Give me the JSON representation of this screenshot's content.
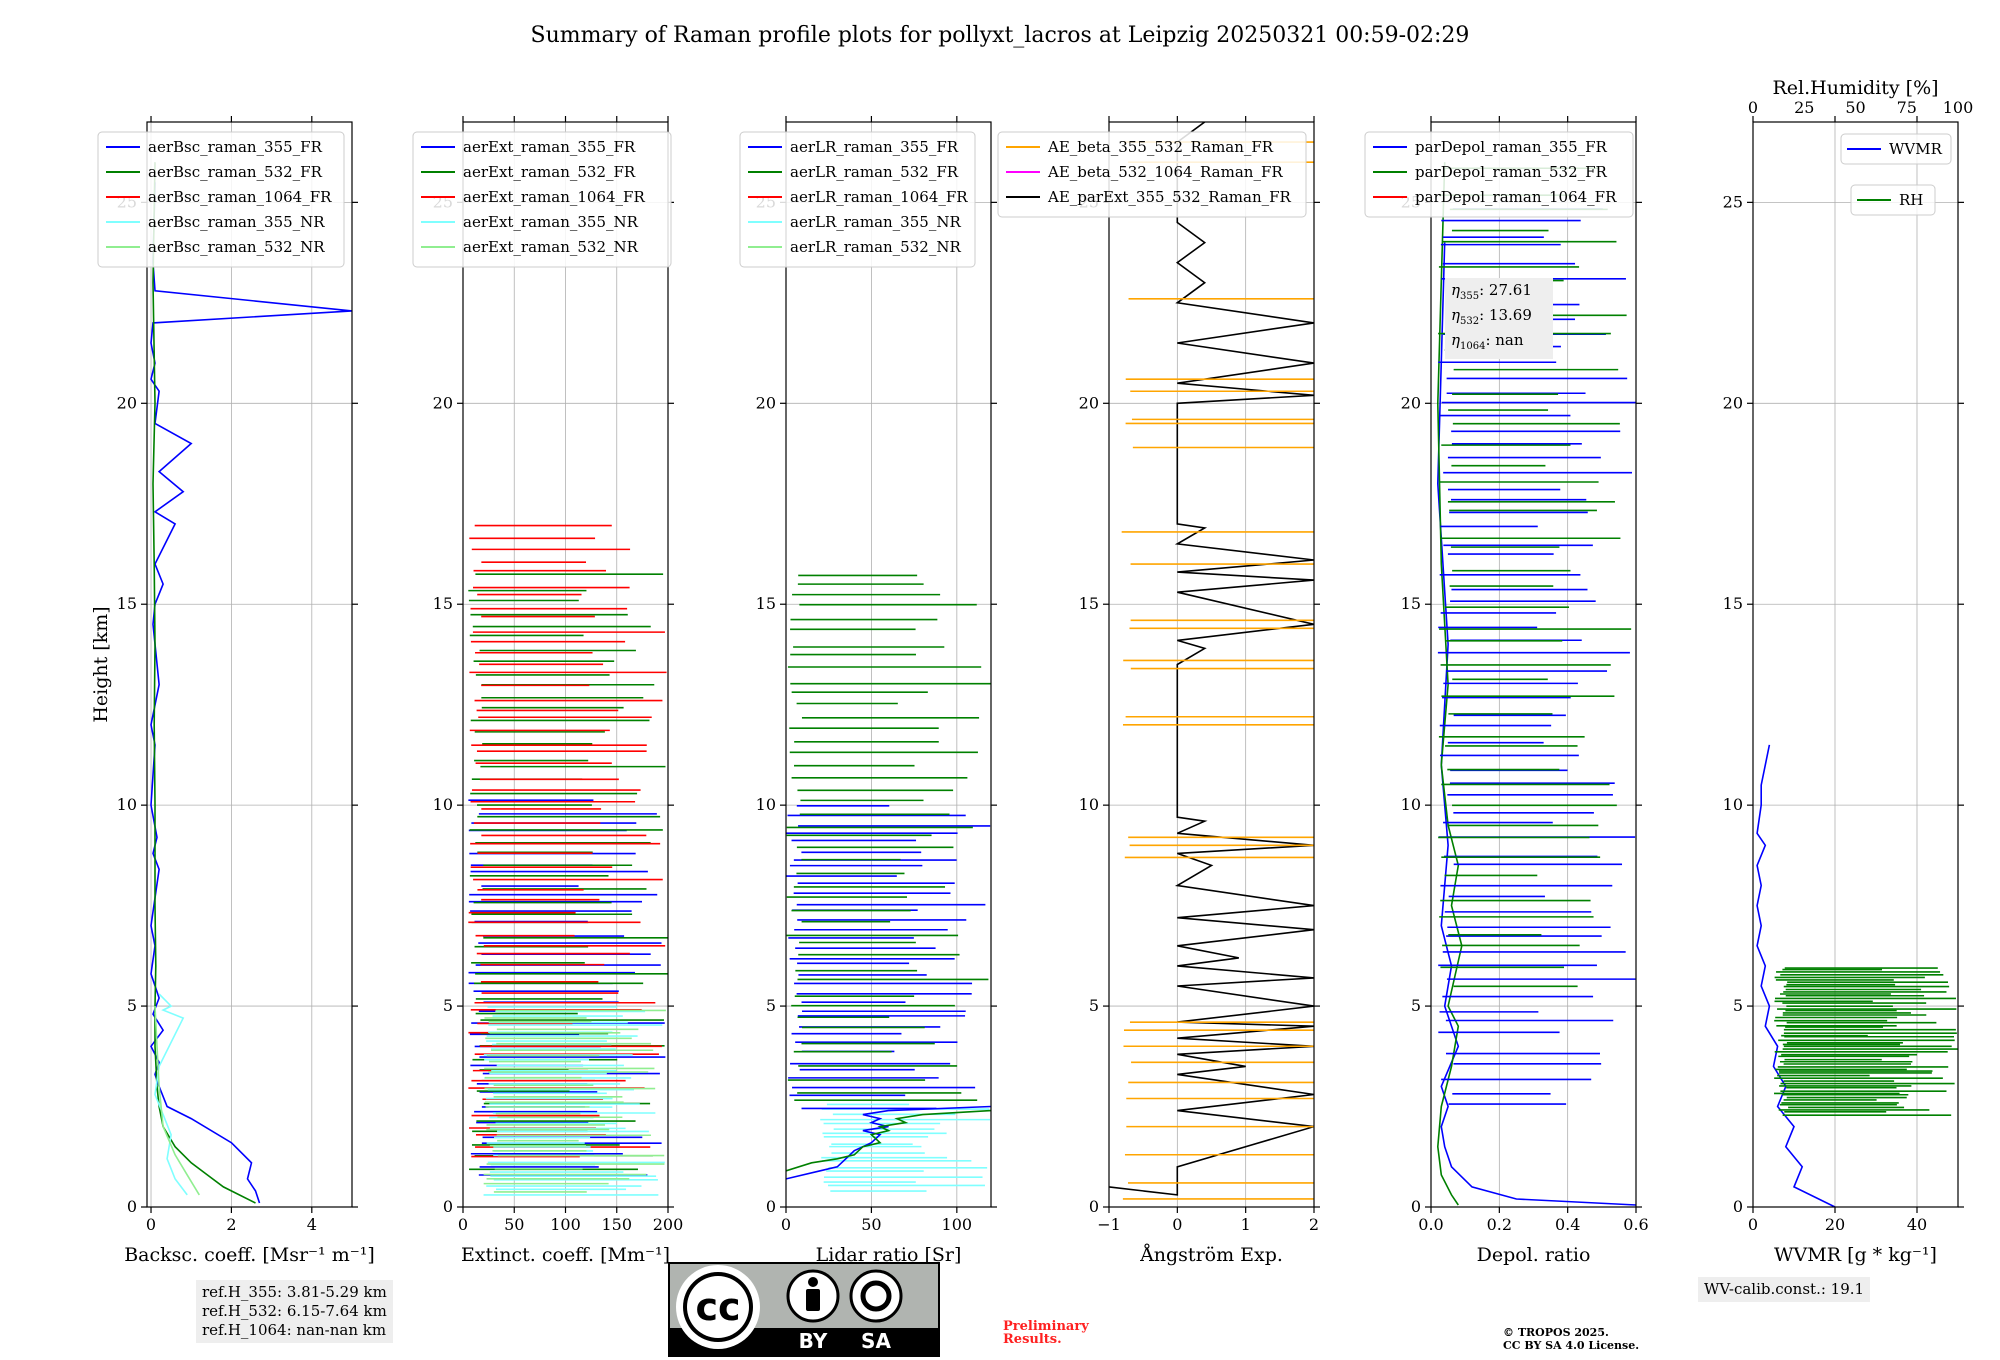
{
  "chart_data": {
    "type": "line",
    "title": "Summary of Raman profile plots for pollyxt_lacros at Leipzig 20250321 00:59-02:29",
    "ylabel": "Height [km]",
    "ylim": [
      0,
      27
    ],
    "yticks": [
      0,
      5,
      10,
      15,
      20,
      25
    ],
    "panels": [
      {
        "id": "bsc",
        "xlabel": "Backsc. coeff. [Msr⁻¹ m⁻¹]",
        "xlim": [
          -0.1,
          5
        ],
        "xticks": [
          0,
          2,
          4
        ],
        "xticklabels": [
          "0",
          "2",
          "4"
        ],
        "legend": [
          "aerBsc_raman_355_FR",
          "aerBsc_raman_532_FR",
          "aerBsc_raman_1064_FR",
          "aerBsc_raman_355_NR",
          "aerBsc_raman_532_NR"
        ],
        "legend_colors": [
          "#0000ff",
          "#008000",
          "#ff0000",
          "#7fffff",
          "#90ee90"
        ],
        "series": [
          {
            "name": "aerBsc_raman_355_FR",
            "color": "#0000ff",
            "style": "line",
            "x": [
              2.7,
              2.6,
              2.4,
              2.5,
              2.0,
              1.0,
              0.4,
              0.2,
              0.1,
              0.2,
              0.0,
              0.3,
              0.05,
              0.2,
              0.0,
              0.1,
              0.0,
              0.2,
              0.05,
              0.15,
              0.0,
              0.1,
              0.0,
              0.2,
              0.05,
              0.1,
              0.3,
              0.1,
              0.6,
              0.1,
              0.8,
              0.2,
              1.0,
              0.1,
              0.2,
              0.0,
              0.1,
              0.0,
              0.05,
              5.0,
              0.1,
              0.05,
              0.1
            ],
            "y": [
              0.1,
              0.4,
              0.7,
              1.1,
              1.6,
              2.2,
              2.5,
              3.0,
              3.3,
              3.6,
              4.0,
              4.4,
              4.8,
              5.2,
              5.8,
              6.5,
              7.0,
              8.4,
              8.8,
              9.2,
              10.0,
              11.5,
              12.0,
              13.0,
              14.5,
              15.0,
              15.5,
              16.0,
              17.0,
              17.3,
              17.8,
              18.3,
              19.0,
              19.5,
              20.3,
              20.6,
              21.0,
              21.5,
              22.0,
              22.3,
              22.8,
              23.5,
              25.5
            ]
          },
          {
            "name": "aerBsc_raman_532_FR",
            "color": "#008000",
            "style": "line",
            "x": [
              2.6,
              1.8,
              1.4,
              1.0,
              0.6,
              0.3,
              0.2,
              0.15,
              0.1,
              0.1,
              0.12,
              0.1,
              0.1,
              0.1,
              0.08,
              0.1,
              0.08,
              0.05,
              0.1,
              0.05,
              0.1
            ],
            "y": [
              0.1,
              0.5,
              0.8,
              1.1,
              1.5,
              2.0,
              2.5,
              3.0,
              4.0,
              5.0,
              6.0,
              7.5,
              8.5,
              10.0,
              12.0,
              14.0,
              16.0,
              18.0,
              20.0,
              23.0,
              26.0
            ]
          },
          {
            "name": "aerBsc_raman_355_NR",
            "color": "#7fffff",
            "style": "line",
            "x": [
              0.9,
              0.6,
              0.4,
              0.5,
              0.3,
              0.1,
              0.2,
              0.8,
              0.3,
              0.5,
              0.2
            ],
            "y": [
              0.3,
              0.7,
              1.2,
              1.8,
              2.3,
              2.8,
              3.5,
              4.7,
              4.9,
              5.0,
              5.3
            ]
          },
          {
            "name": "aerBsc_raman_532_NR",
            "color": "#90ee90",
            "style": "line",
            "x": [
              1.2,
              0.9,
              0.6,
              0.3,
              0.2,
              0.15,
              0.1
            ],
            "y": [
              0.3,
              0.8,
              1.3,
              2.0,
              3.0,
              4.0,
              5.0
            ]
          }
        ]
      },
      {
        "id": "ext",
        "xlabel": "Extinct. coeff. [Mm⁻¹]",
        "xlim": [
          0,
          200
        ],
        "xticks": [
          0,
          50,
          100,
          150,
          200
        ],
        "xticklabels": [
          "0",
          "50",
          "100",
          "150",
          "200"
        ],
        "legend": [
          "aerExt_raman_355_FR",
          "aerExt_raman_532_FR",
          "aerExt_raman_1064_FR",
          "aerExt_raman_355_NR",
          "aerExt_raman_532_NR"
        ],
        "legend_colors": [
          "#0000ff",
          "#008000",
          "#ff0000",
          "#7fffff",
          "#90ee90"
        ],
        "series": [
          {
            "name": "aerExt_raman_355_FR",
            "color": "#0000ff",
            "style": "hlines",
            "y_from": 0.8,
            "y_to": 10.1,
            "step": 0.25,
            "x_min": 5,
            "x_max": 200
          },
          {
            "name": "aerExt_raman_532_FR",
            "color": "#008000",
            "style": "hlines",
            "y_from": 1.0,
            "y_to": 16.0,
            "step": 0.3,
            "x_min": 5,
            "x_max": 200
          },
          {
            "name": "aerExt_raman_1064_FR",
            "color": "#ff0000",
            "style": "hlines",
            "y_from": 1.2,
            "y_to": 17.1,
            "step": 0.28,
            "x_min": 5,
            "x_max": 200
          },
          {
            "name": "aerExt_raman_355_NR",
            "color": "#7fffff",
            "style": "hlines",
            "y_from": 0.3,
            "y_to": 5.0,
            "step": 0.12,
            "x_min": 20,
            "x_max": 200
          },
          {
            "name": "aerExt_raman_532_NR",
            "color": "#90ee90",
            "style": "hlines",
            "y_from": 0.4,
            "y_to": 5.0,
            "step": 0.14,
            "x_min": 20,
            "x_max": 200
          }
        ]
      },
      {
        "id": "lr",
        "xlabel": "Lidar ratio [Sr]",
        "xlim": [
          0,
          120
        ],
        "xticks": [
          0,
          50,
          100
        ],
        "xticklabels": [
          "0",
          "50",
          "100"
        ],
        "legend": [
          "aerLR_raman_355_FR",
          "aerLR_raman_532_FR",
          "aerLR_raman_1064_FR",
          "aerLR_raman_355_NR",
          "aerLR_raman_532_NR"
        ],
        "legend_colors": [
          "#0000ff",
          "#008000",
          "#ff0000",
          "#7fffff",
          "#90ee90"
        ],
        "series": [
          {
            "name": "aerLR_raman_355_NR",
            "color": "#7fffff",
            "style": "hlines",
            "y_from": 0.4,
            "y_to": 2.6,
            "step": 0.12,
            "x_min": 20,
            "x_max": 120
          },
          {
            "name": "aerLR_raman_355_FR",
            "color": "#0000ff",
            "style": "hlines",
            "y_from": 2.5,
            "y_to": 10.1,
            "step": 0.22,
            "x_min": 0,
            "x_max": 120
          },
          {
            "name": "aerLR_raman_532_FR",
            "color": "#008000",
            "style": "hlines",
            "y_from": 2.6,
            "y_to": 15.9,
            "step": 0.3,
            "x_min": 0,
            "x_max": 120
          },
          {
            "name": "aerLR_raman_355_FR",
            "color": "#0000ff",
            "style": "line",
            "x": [
              0,
              20,
              30,
              35,
              40,
              45,
              50,
              55,
              45,
              60,
              50,
              55,
              45,
              60,
              120
            ],
            "y": [
              0.7,
              0.9,
              1.0,
              1.2,
              1.4,
              1.5,
              1.6,
              1.8,
              1.9,
              2.0,
              2.1,
              2.2,
              2.3,
              2.4,
              2.5
            ]
          },
          {
            "name": "aerLR_raman_532_FR",
            "color": "#008000",
            "style": "line",
            "x": [
              0,
              15,
              30,
              40,
              45,
              55,
              50,
              60,
              55,
              70,
              65,
              80,
              120
            ],
            "y": [
              0.9,
              1.1,
              1.2,
              1.3,
              1.5,
              1.6,
              1.8,
              1.9,
              2.0,
              2.1,
              2.2,
              2.3,
              2.4
            ]
          }
        ]
      },
      {
        "id": "ae",
        "xlabel": "Ångström Exp.",
        "xlim": [
          -1,
          2
        ],
        "xticks": [
          -1,
          0,
          1,
          2
        ],
        "xticklabels": [
          "−1",
          "0",
          "1",
          "2"
        ],
        "legend": [
          "AE_beta_355_532_Raman_FR",
          "AE_beta_532_1064_Raman_FR",
          "AE_parExt_355_532_Raman_FR"
        ],
        "legend_colors": [
          "#ffa500",
          "#ff00ff",
          "#000000"
        ],
        "series": [
          {
            "name": "AE_parExt_355_532_Raman_FR",
            "color": "#000000",
            "style": "line",
            "x": [
              -1,
              0,
              0,
              2,
              0,
              2,
              0,
              1.0,
              0,
              2,
              0,
              2,
              0,
              2,
              0,
              2,
              0,
              0.9,
              0,
              2,
              0,
              2,
              0,
              0.5,
              0,
              2,
              0,
              0.4,
              0,
              0,
              0.4,
              0,
              2,
              0,
              2,
              0,
              2,
              0,
              0.4,
              0,
              0,
              0,
              2,
              0,
              2,
              0,
              2,
              0,
              0.4,
              0,
              0.4,
              0,
              0,
              0,
              0,
              0,
              0.4
            ],
            "y": [
              0.5,
              0.3,
              1.0,
              2.0,
              2.4,
              2.8,
              3.3,
              3.5,
              3.8,
              4.0,
              4.2,
              4.5,
              4.6,
              5.0,
              5.5,
              5.7,
              6.0,
              6.2,
              6.5,
              6.9,
              7.2,
              7.5,
              8.0,
              8.5,
              8.8,
              9.0,
              9.3,
              9.6,
              9.7,
              13.5,
              13.9,
              14.1,
              14.5,
              15.3,
              15.6,
              15.8,
              16.1,
              16.5,
              16.9,
              17.0,
              18.0,
              20.0,
              20.2,
              20.5,
              21.0,
              21.5,
              22.0,
              22.5,
              23.0,
              23.5,
              24.0,
              24.5,
              25.0,
              25.5,
              26.0,
              26.5,
              27.0
            ]
          },
          {
            "name": "AE_beta_355_532_Raman_FR",
            "color": "#ffa500",
            "style": "hlines_list",
            "ys": [
              0.2,
              0.6,
              1.3,
              2.0,
              2.7,
              3.1,
              3.6,
              4.0,
              4.4,
              4.6,
              8.7,
              9.0,
              9.2,
              12.0,
              12.2,
              13.4,
              13.6,
              14.4,
              14.6,
              16.0,
              16.8,
              18.9,
              19.5,
              19.6,
              20.3,
              20.6,
              22.6,
              26.0,
              26.5
            ],
            "x_min": -1,
            "x_max": 2
          }
        ]
      },
      {
        "id": "depol",
        "xlabel": "Depol. ratio",
        "xlim": [
          0,
          0.6
        ],
        "xticks": [
          0,
          0.2,
          0.4,
          0.6
        ],
        "xticklabels": [
          "0.0",
          "0.2",
          "0.4",
          "0.6"
        ],
        "legend": [
          "parDepol_raman_355_FR",
          "parDepol_raman_532_FR",
          "parDepol_raman_1064_FR"
        ],
        "legend_colors": [
          "#0000ff",
          "#008000",
          "#ff0000"
        ],
        "series": [
          {
            "name": "parDepol_raman_355_FR",
            "color": "#0000ff",
            "style": "line",
            "x": [
              0.6,
              0.25,
              0.12,
              0.06,
              0.04,
              0.03,
              0.05,
              0.03,
              0.08,
              0.04,
              0.06,
              0.03,
              0.05,
              0.03,
              0.05,
              0.02,
              0.04
            ],
            "y": [
              0.05,
              0.2,
              0.5,
              1.0,
              1.5,
              2.0,
              2.5,
              3.0,
              4.0,
              5.0,
              6.0,
              7.0,
              9.0,
              11.0,
              14.0,
              18.0,
              24.0
            ]
          },
          {
            "name": "parDepol_raman_532_FR",
            "color": "#008000",
            "style": "line",
            "x": [
              0.08,
              0.06,
              0.03,
              0.02,
              0.03,
              0.06,
              0.08,
              0.05,
              0.09,
              0.06,
              0.08,
              0.05,
              0.03,
              0.05,
              0.03,
              0.02,
              0.04
            ],
            "y": [
              0.05,
              0.3,
              0.8,
              1.5,
              2.5,
              3.5,
              4.5,
              5.0,
              6.5,
              7.5,
              8.5,
              9.5,
              11.0,
              13.0,
              16.0,
              20.0,
              26.0
            ]
          },
          {
            "name": "parDepol_raman_355_FR",
            "color": "#0000ff",
            "style": "hlines",
            "y_from": 2.5,
            "y_to": 25.0,
            "step": 0.35,
            "x_min": 0.02,
            "x_max": 0.6
          },
          {
            "name": "parDepol_raman_532_FR",
            "color": "#008000",
            "style": "hlines",
            "y_from": 5.5,
            "y_to": 26.0,
            "step": 0.45,
            "x_min": 0.02,
            "x_max": 0.6
          }
        ]
      },
      {
        "id": "wv",
        "xlabel": "WVMR [g * kg⁻¹]",
        "xlim": [
          0,
          50
        ],
        "xticks": [
          0,
          20,
          40
        ],
        "xticklabels": [
          "0",
          "20",
          "40"
        ],
        "top_label": "Rel.Humidity [%]",
        "top_xlim": [
          0,
          100
        ],
        "top_xticks": [
          0,
          25,
          50,
          75,
          100
        ],
        "top_xticklabels": [
          "0",
          "25",
          "50",
          "75",
          "100"
        ],
        "legend": [
          "WVMR",
          "RH"
        ],
        "legend_colors": [
          "#0000ff",
          "#008000"
        ],
        "series": [
          {
            "name": "WVMR",
            "color": "#0000ff",
            "style": "line",
            "x": [
              20,
              10,
              12,
              8,
              10,
              6,
              8,
              5,
              6,
              3,
              4,
              2,
              3,
              1,
              2,
              1,
              2,
              1,
              3,
              1,
              2,
              2,
              4
            ],
            "y": [
              0.0,
              0.5,
              1.0,
              1.5,
              2.0,
              2.5,
              3.0,
              3.5,
              4.0,
              4.5,
              5.0,
              5.5,
              6.0,
              6.5,
              7.0,
              7.5,
              8.0,
              8.5,
              9.0,
              9.3,
              10.0,
              10.5,
              11.5
            ]
          },
          {
            "name": "RH",
            "color": "#008000",
            "style": "hlines",
            "y_from": 2.3,
            "y_to": 6.0,
            "step": 0.06,
            "x_min": 5,
            "x_max": 50
          }
        ]
      }
    ]
  },
  "annotations": {
    "eta_355_label": "η",
    "eta_355_sub": "355",
    "eta_355_value": ": 27.61",
    "eta_532_sub": "532",
    "eta_532_value": ": 13.69",
    "eta_1064_sub": "1064",
    "eta_1064_value": ": nan",
    "ref_h_355": "ref.H_355: 3.81-5.29 km",
    "ref_h_532": "ref.H_532: 6.15-7.64 km",
    "ref_h_1064": "ref.H_1064: nan-nan km",
    "wv_calib": "WV-calib.const.: 19.1",
    "preliminary_1": "Preliminary",
    "preliminary_2": "Results.",
    "copyright_1": "© TROPOS 2025.",
    "copyright_2": "CC BY SA 4.0 License.",
    "cc_text": "cc",
    "cc_by": "BY",
    "cc_sa": "SA"
  }
}
